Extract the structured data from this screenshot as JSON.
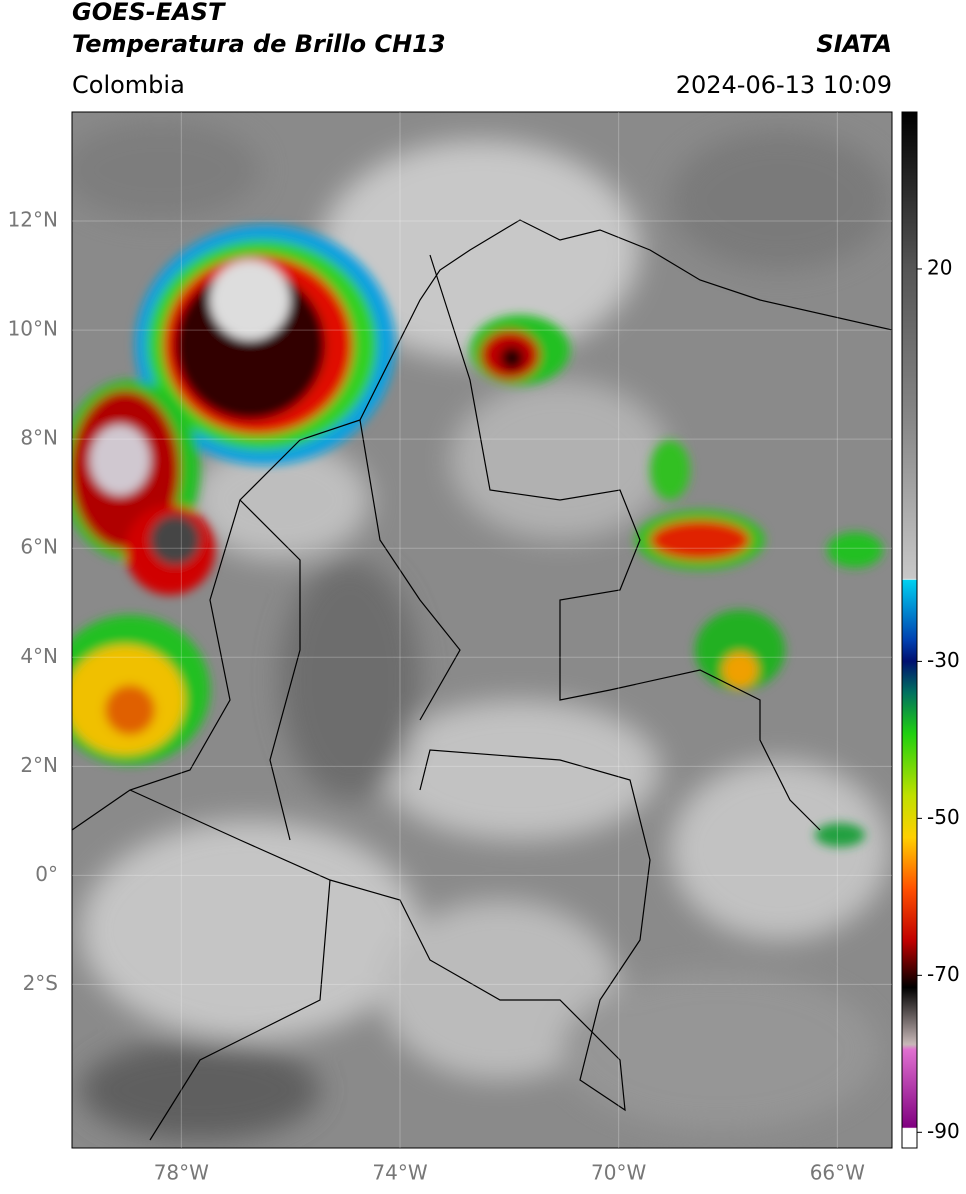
{
  "header": {
    "title": "GOES-EAST",
    "subtitle": "Temperatura de Brillo CH13",
    "region": "Colombia",
    "source": "SIATA",
    "datetime": "2024-06-13 10:09"
  },
  "map": {
    "lonlim": [
      -80,
      -65
    ],
    "latlim": [
      -5,
      14
    ],
    "lonticks": [
      {
        "value": -78,
        "label": "78°W"
      },
      {
        "value": -74,
        "label": "74°W"
      },
      {
        "value": -70,
        "label": "70°W"
      },
      {
        "value": -66,
        "label": "66°W"
      }
    ],
    "latticks": [
      {
        "value": 12,
        "label": "12°N"
      },
      {
        "value": 10,
        "label": "10°N"
      },
      {
        "value": 8,
        "label": "8°N"
      },
      {
        "value": 6,
        "label": "6°N"
      },
      {
        "value": 4,
        "label": "4°N"
      },
      {
        "value": 2,
        "label": "2°N"
      },
      {
        "value": 0,
        "label": "0°"
      },
      {
        "value": -2,
        "label": "2°S"
      }
    ]
  },
  "colorbar": {
    "lim": [
      -92,
      40
    ],
    "ticks": [
      20,
      -30,
      -50,
      -70,
      -90
    ]
  }
}
